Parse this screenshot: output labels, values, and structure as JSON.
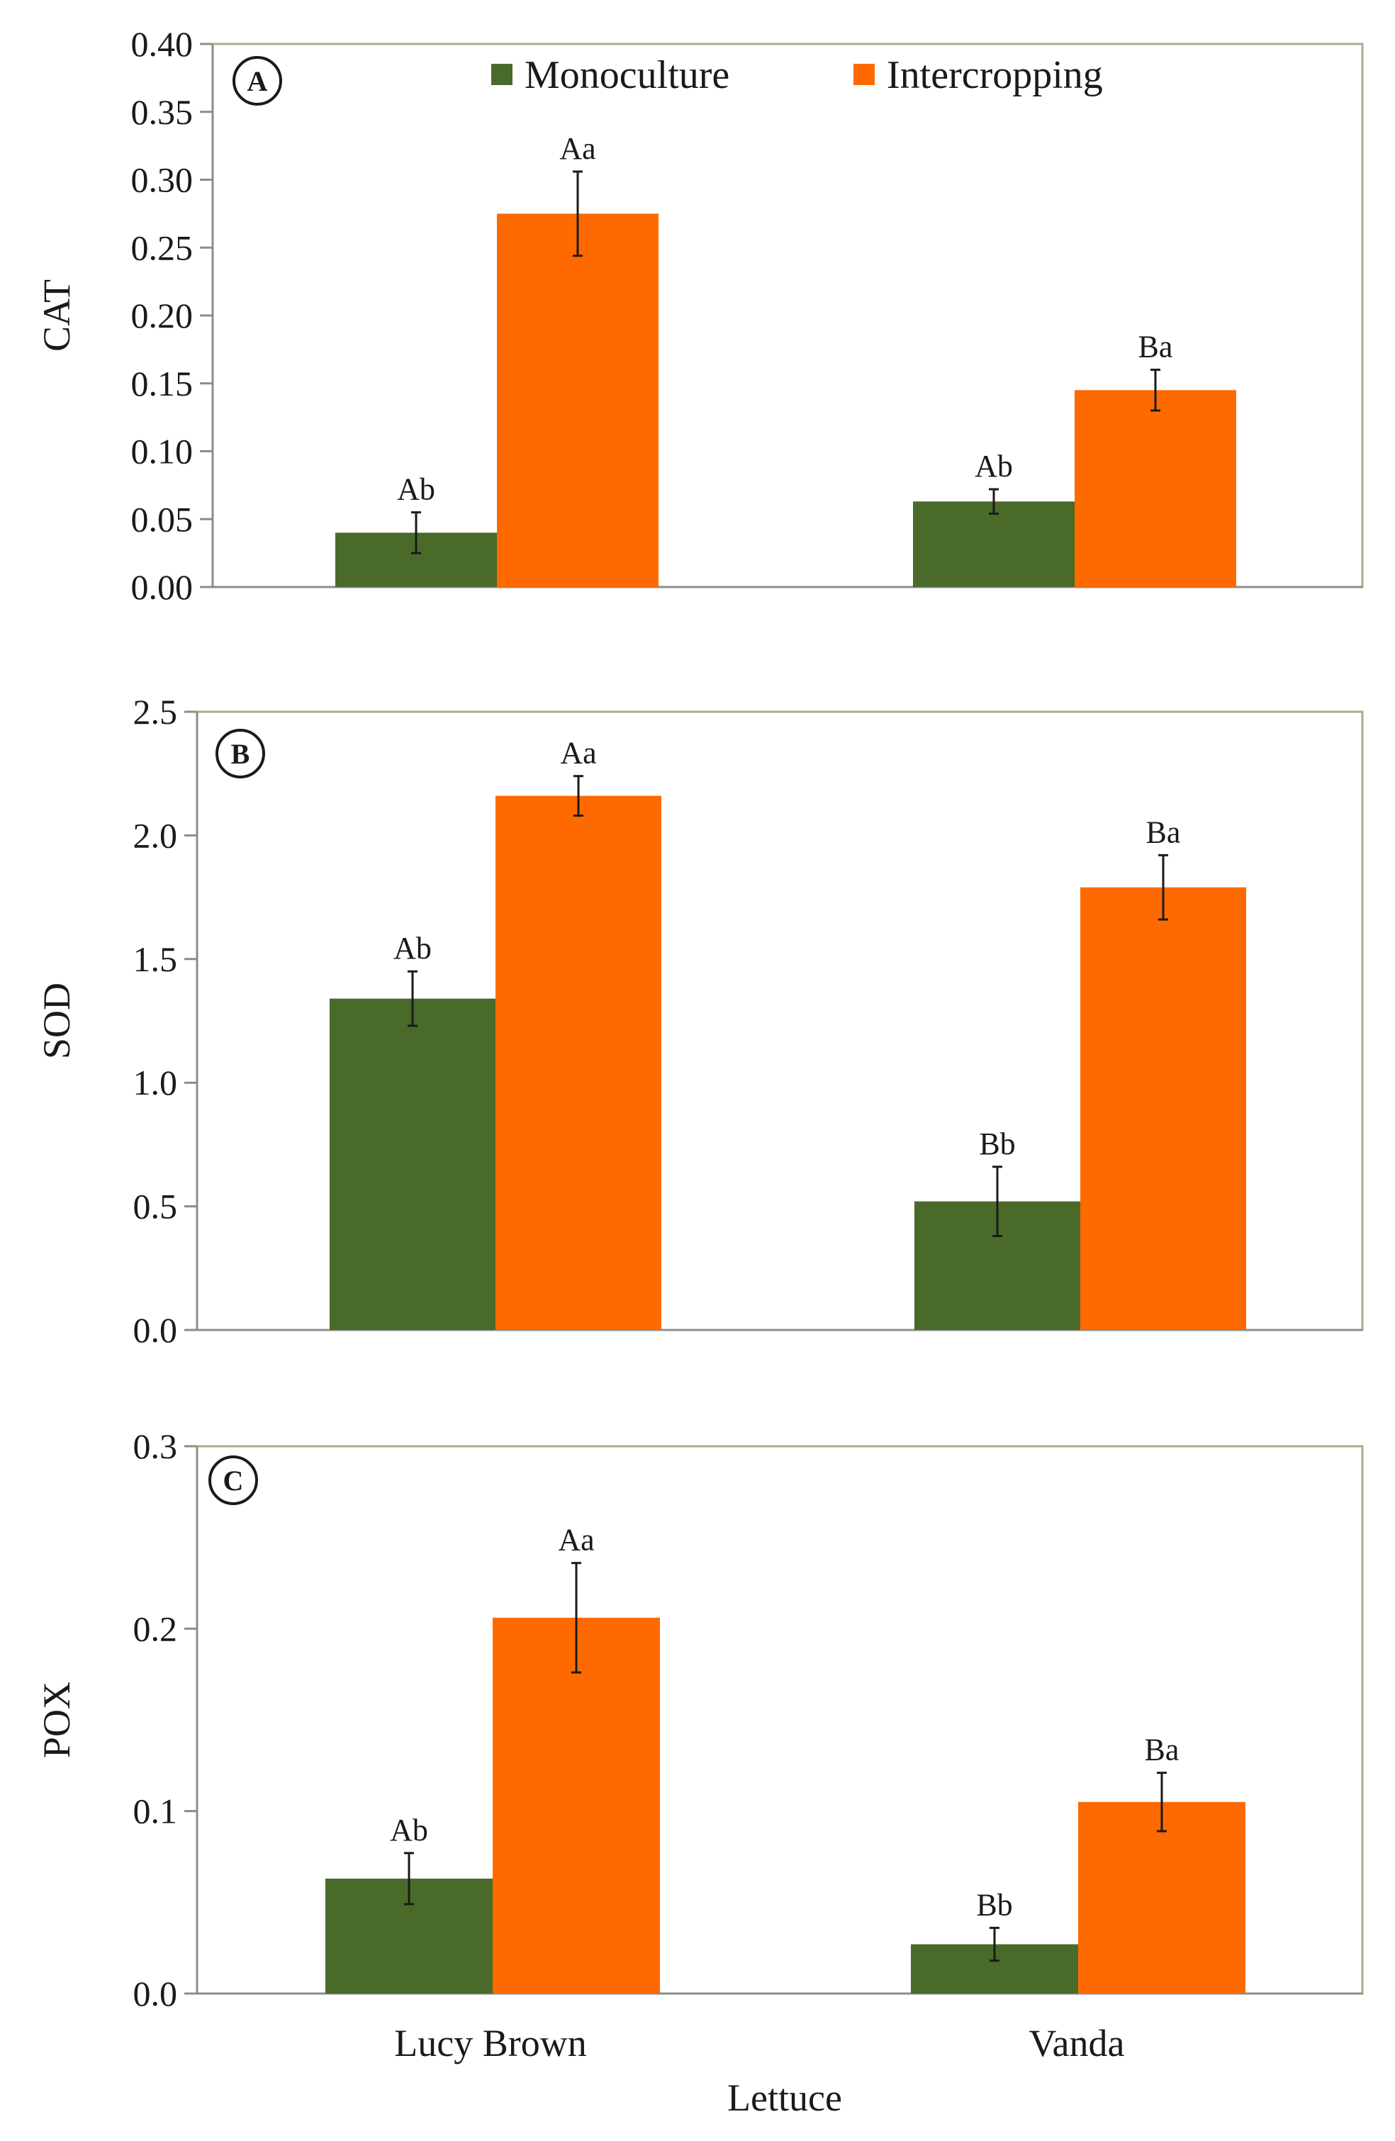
{
  "figure": {
    "legend": [
      {
        "name": "Monoculture",
        "color": "#4a6a2a"
      },
      {
        "name": "Intercropping",
        "color": "#ff6a00"
      }
    ],
    "xlabel": "Lettuce"
  },
  "chart_data": [
    {
      "type": "bar",
      "panel": "A",
      "ylabel": "CAT",
      "ylim": [
        0,
        0.4
      ],
      "yticks": [
        "0.00",
        "0.05",
        "0.10",
        "0.15",
        "0.20",
        "0.25",
        "0.30",
        "0.35",
        "0.40"
      ],
      "categories": [
        "Lucy Brown",
        "Vanda"
      ],
      "series": [
        {
          "name": "Monoculture",
          "values": [
            0.04,
            0.063
          ],
          "errors": [
            0.015,
            0.009
          ],
          "labels": [
            "Ab",
            "Ab"
          ]
        },
        {
          "name": "Intercropping",
          "values": [
            0.275,
            0.145
          ],
          "errors": [
            0.031,
            0.015
          ],
          "labels": [
            "Aa",
            "Ba"
          ]
        }
      ]
    },
    {
      "type": "bar",
      "panel": "B",
      "ylabel": "SOD",
      "ylim": [
        0,
        2.5
      ],
      "yticks": [
        "0.0",
        "0.5",
        "1.0",
        "1.5",
        "2.0",
        "2.5"
      ],
      "categories": [
        "Lucy Brown",
        "Vanda"
      ],
      "series": [
        {
          "name": "Monoculture",
          "values": [
            1.34,
            0.52
          ],
          "errors": [
            0.11,
            0.14
          ],
          "labels": [
            "Ab",
            "Bb"
          ]
        },
        {
          "name": "Intercropping",
          "values": [
            2.16,
            1.79
          ],
          "errors": [
            0.08,
            0.13
          ],
          "labels": [
            "Aa",
            "Ba"
          ]
        }
      ]
    },
    {
      "type": "bar",
      "panel": "C",
      "ylabel": "POX",
      "ylim": [
        0,
        0.3
      ],
      "yticks": [
        "0.0",
        "0.1",
        "0.2",
        "0.3"
      ],
      "categories": [
        "Lucy Brown",
        "Vanda"
      ],
      "series": [
        {
          "name": "Monoculture",
          "values": [
            0.063,
            0.027
          ],
          "errors": [
            0.014,
            0.009
          ],
          "labels": [
            "Ab",
            "Bb"
          ]
        },
        {
          "name": "Intercropping",
          "values": [
            0.206,
            0.105
          ],
          "errors": [
            0.03,
            0.016
          ],
          "labels": [
            "Aa",
            "Ba"
          ]
        }
      ]
    }
  ]
}
